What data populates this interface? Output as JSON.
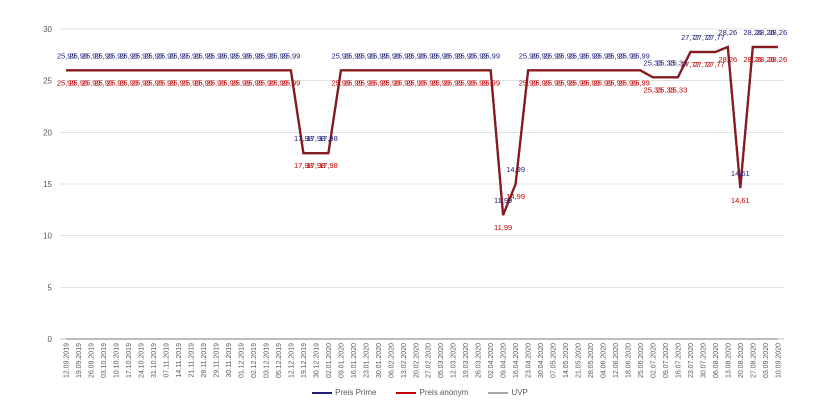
{
  "chart_data": {
    "type": "line",
    "title": "",
    "xlabel": "",
    "ylabel": "",
    "ylim": [
      0,
      30
    ],
    "yticks": [
      0,
      5,
      10,
      15,
      20,
      25,
      30
    ],
    "grid": true,
    "legend_position": "bottom",
    "categories": [
      "12.09.2019",
      "19.09.2019",
      "26.09.2019",
      "03.10.2019",
      "10.10.2019",
      "17.10.2019",
      "24.10.2019",
      "31.10.2019",
      "07.11.2019",
      "14.11.2019",
      "21.11.2019",
      "28.11.2019",
      "29.11.2019",
      "30.11.2019",
      "01.12.2019",
      "02.12.2019",
      "03.12.2019",
      "05.12.2019",
      "12.12.2019",
      "19.12.2019",
      "30.12.2019",
      "02.01.2020",
      "09.01.2020",
      "16.01.2020",
      "23.01.2020",
      "30.01.2020",
      "06.02.2020",
      "13.02.2020",
      "20.02.2020",
      "27.02.2020",
      "05.03.2020",
      "12.03.2020",
      "19.03.2020",
      "26.03.2020",
      "02.04.2020",
      "09.04.2020",
      "16.04.2020",
      "23.04.2020",
      "30.04.2020",
      "07.05.2020",
      "14.05.2020",
      "21.05.2020",
      "28.05.2020",
      "04.06.2020",
      "12.06.2020",
      "18.06.2020",
      "25.06.2020",
      "02.07.2020",
      "09.07.2020",
      "16.07.2020",
      "23.07.2020",
      "30.07.2020",
      "06.08.2020",
      "13.08.2020",
      "20.08.2020",
      "27.08.2020",
      "03.09.2020",
      "10.09.2020"
    ],
    "series": [
      {
        "name": "Preis Prime",
        "color": "#1f1f7a",
        "label_color": "#1f1f7a",
        "label_position": "above",
        "values": [
          25.99,
          25.99,
          25.99,
          25.99,
          25.99,
          25.99,
          25.99,
          25.99,
          25.99,
          25.99,
          25.99,
          25.99,
          25.99,
          25.99,
          25.99,
          25.99,
          25.99,
          25.99,
          25.99,
          17.98,
          17.98,
          17.98,
          25.99,
          25.99,
          25.99,
          25.99,
          25.99,
          25.99,
          25.99,
          25.99,
          25.99,
          25.99,
          25.99,
          25.99,
          25.99,
          11.99,
          14.99,
          25.99,
          25.99,
          25.99,
          25.99,
          25.99,
          25.99,
          25.99,
          25.99,
          25.99,
          25.99,
          25.33,
          25.33,
          25.33,
          27.77,
          27.77,
          27.77,
          28.26,
          14.61,
          28.26,
          28.26,
          28.26
        ]
      },
      {
        "name": "Preis anonym",
        "color": "#8b1a1a",
        "label_color": "#c00000",
        "label_position": "below",
        "values": [
          25.99,
          25.99,
          25.99,
          25.99,
          25.99,
          25.99,
          25.99,
          25.99,
          25.99,
          25.99,
          25.99,
          25.99,
          25.99,
          25.99,
          25.99,
          25.99,
          25.99,
          25.99,
          25.99,
          17.98,
          17.98,
          17.98,
          25.99,
          25.99,
          25.99,
          25.99,
          25.99,
          25.99,
          25.99,
          25.99,
          25.99,
          25.99,
          25.99,
          25.99,
          25.99,
          11.99,
          14.99,
          25.99,
          25.99,
          25.99,
          25.99,
          25.99,
          25.99,
          25.99,
          25.99,
          25.99,
          25.99,
          25.33,
          25.33,
          25.33,
          27.77,
          27.77,
          27.77,
          28.26,
          14.61,
          28.26,
          28.26,
          28.26
        ]
      },
      {
        "name": "UVP",
        "color": "#a6a6a6",
        "label_color": null,
        "label_position": "none",
        "values": [
          0,
          0,
          0,
          0,
          0,
          0,
          0,
          0,
          0,
          0,
          0,
          0,
          0,
          0,
          0,
          0,
          0,
          0,
          0,
          0,
          0,
          0,
          0,
          0,
          0,
          0,
          0,
          0,
          0,
          0,
          0,
          0,
          0,
          0,
          0,
          0,
          0,
          0,
          0,
          0,
          0,
          0,
          0,
          0,
          0,
          0,
          0,
          0,
          0,
          0,
          0,
          0,
          0,
          0,
          0,
          0,
          0,
          0
        ]
      }
    ]
  },
  "legend": {
    "items": [
      {
        "label": "Preis Prime",
        "color": "#1f1f7a"
      },
      {
        "label": "Preis anonym",
        "color": "#c00000"
      },
      {
        "label": "UVP",
        "color": "#a6a6a6"
      }
    ]
  }
}
